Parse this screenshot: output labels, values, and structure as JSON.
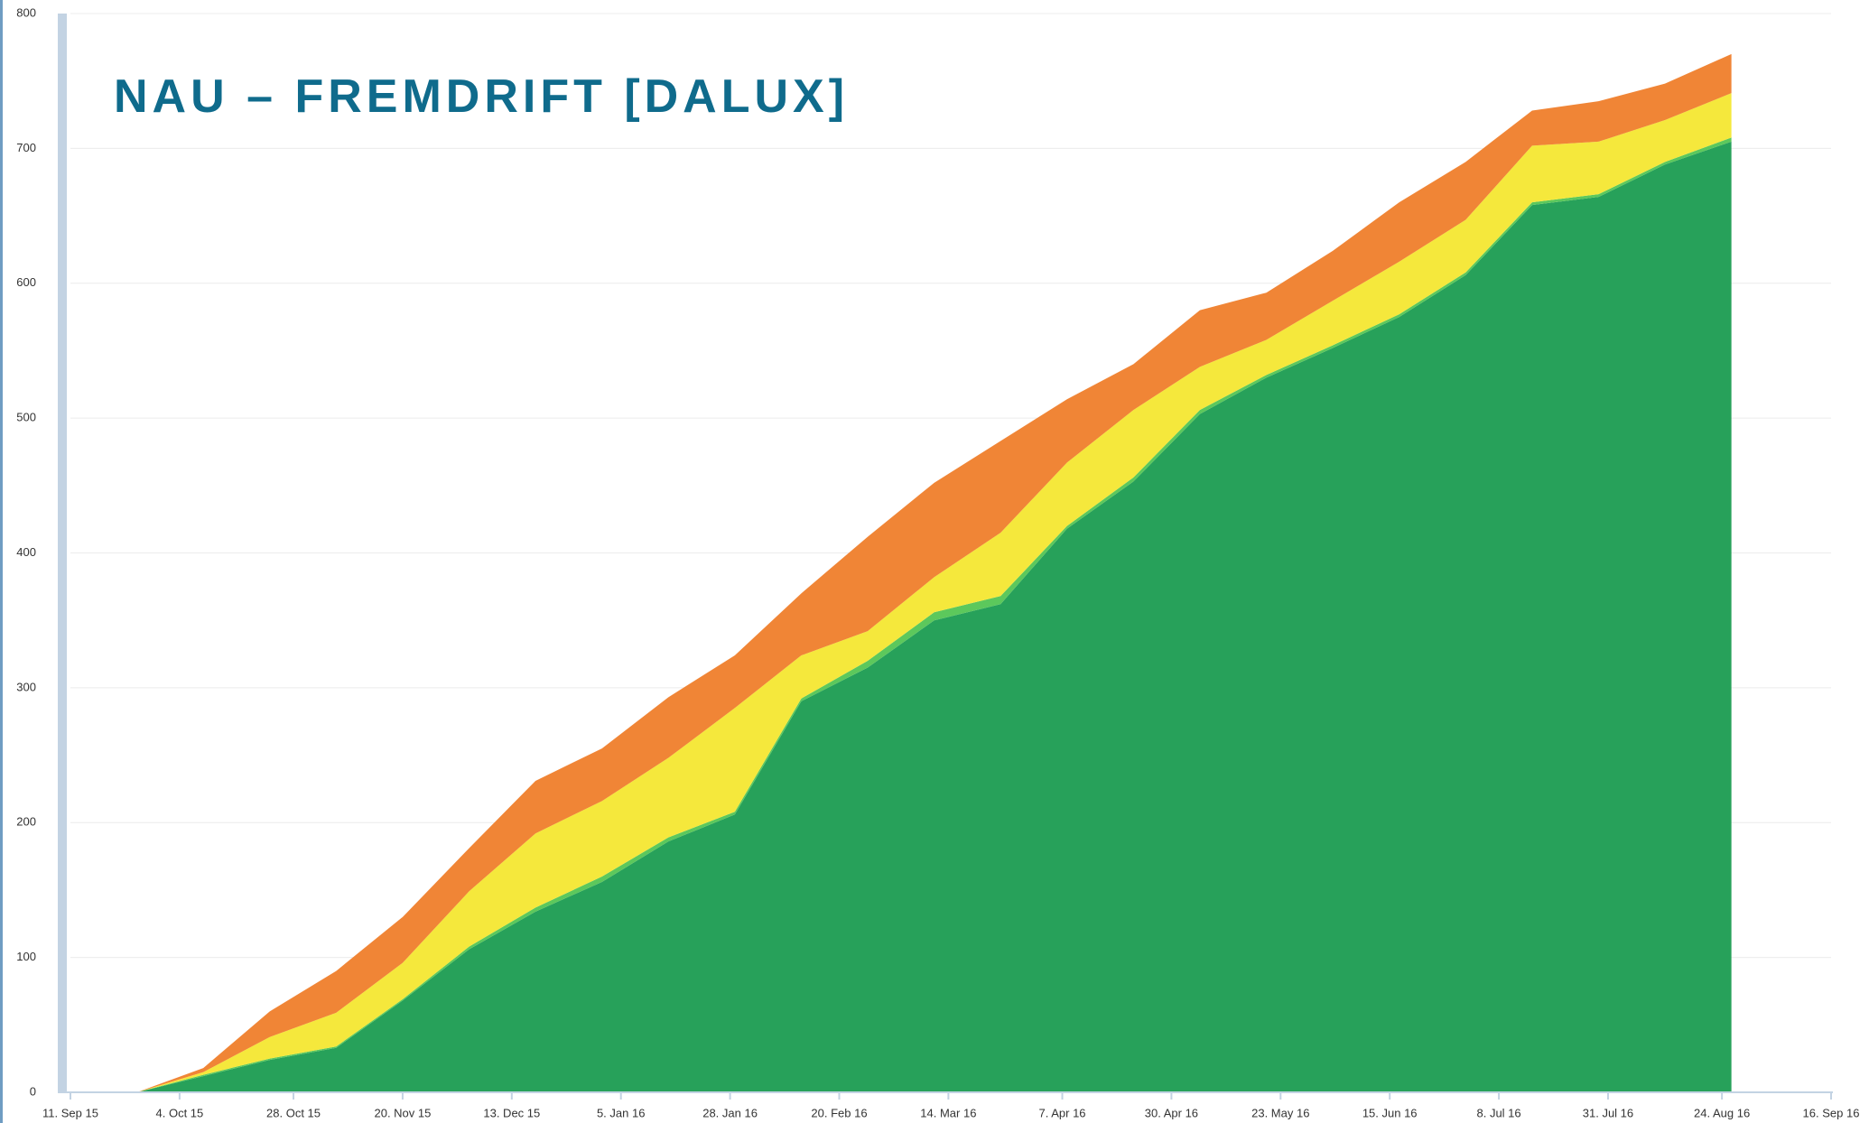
{
  "chart_data": {
    "type": "stacked-area",
    "title": "NAU – FREMDRIFT [DALUX]",
    "x": [
      "2015-09-25",
      "2015-10-09",
      "2015-10-23",
      "2015-11-06",
      "2015-11-20",
      "2015-12-04",
      "2015-12-18",
      "2016-01-01",
      "2016-01-15",
      "2016-01-29",
      "2016-02-12",
      "2016-02-26",
      "2016-03-11",
      "2016-03-25",
      "2016-04-08",
      "2016-04-22",
      "2016-05-06",
      "2016-05-20",
      "2016-06-03",
      "2016-06-17",
      "2016-07-01",
      "2016-07-15",
      "2016-07-29",
      "2016-08-12",
      "2016-08-26"
    ],
    "series": [
      {
        "color": "#27a15a",
        "values": [
          0,
          12,
          24,
          33,
          68,
          106,
          134,
          156,
          186,
          206,
          290,
          315,
          350,
          362,
          418,
          453,
          503,
          530,
          552,
          575,
          606,
          658,
          664,
          688,
          705
        ]
      },
      {
        "color": "#5cc85c",
        "values": [
          0,
          1,
          1,
          1,
          1,
          2,
          3,
          4,
          3,
          2,
          2,
          5,
          6,
          6,
          2,
          3,
          3,
          2,
          2,
          2,
          2,
          2,
          2,
          2,
          3
        ]
      },
      {
        "color": "#f5e83c",
        "values": [
          0,
          2,
          16,
          25,
          27,
          41,
          55,
          56,
          59,
          77,
          32,
          22,
          26,
          47,
          47,
          50,
          32,
          26,
          33,
          39,
          39,
          42,
          39,
          31,
          33
        ]
      },
      {
        "color": "#f08536",
        "values": [
          0,
          3,
          19,
          31,
          34,
          32,
          39,
          39,
          45,
          39,
          46,
          70,
          70,
          68,
          47,
          34,
          42,
          35,
          37,
          44,
          43,
          26,
          30,
          27,
          29
        ]
      }
    ],
    "xlim": [
      "2015-09-11",
      "2016-09-16"
    ],
    "xticks": [
      {
        "value": "2015-09-11",
        "label": "11. Sep 15"
      },
      {
        "value": "2015-10-04",
        "label": "4. Oct 15"
      },
      {
        "value": "2015-10-28",
        "label": "28. Oct 15"
      },
      {
        "value": "2015-11-20",
        "label": "20. Nov 15"
      },
      {
        "value": "2015-12-13",
        "label": "13. Dec 15"
      },
      {
        "value": "2016-01-05",
        "label": "5. Jan 16"
      },
      {
        "value": "2016-01-28",
        "label": "28. Jan 16"
      },
      {
        "value": "2016-02-20",
        "label": "20. Feb 16"
      },
      {
        "value": "2016-03-14",
        "label": "14. Mar 16"
      },
      {
        "value": "2016-04-07",
        "label": "7. Apr 16"
      },
      {
        "value": "2016-04-30",
        "label": "30. Apr 16"
      },
      {
        "value": "2016-05-23",
        "label": "23. May 16"
      },
      {
        "value": "2016-06-15",
        "label": "15. Jun 16"
      },
      {
        "value": "2016-07-08",
        "label": "8. Jul 16"
      },
      {
        "value": "2016-07-31",
        "label": "31. Jul 16"
      },
      {
        "value": "2016-08-24",
        "label": "24. Aug 16"
      },
      {
        "value": "2016-09-16",
        "label": "16. Sep 16"
      }
    ],
    "ylim": [
      0,
      800
    ],
    "yticks": [
      0,
      100,
      200,
      300,
      400,
      500,
      600,
      700,
      800
    ],
    "grid": true
  }
}
